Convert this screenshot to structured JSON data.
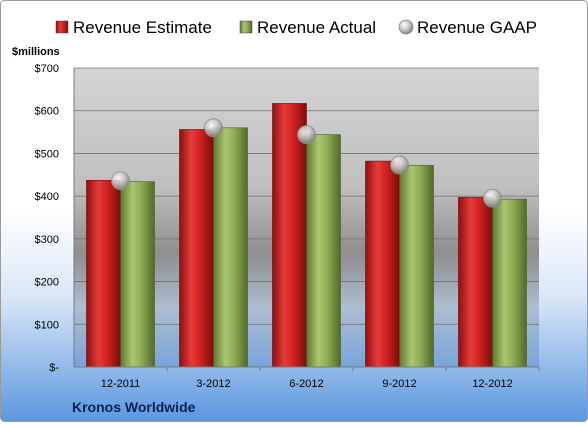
{
  "chart_data": {
    "type": "bar",
    "ylabel": "$millions",
    "footer": "Kronos Worldwide",
    "categories": [
      "12-2011",
      "3-2012",
      "6-2012",
      "9-2012",
      "12-2012"
    ],
    "y_ticks": [
      "$-",
      "$100",
      "$200",
      "$300",
      "$400",
      "$500",
      "$600",
      "$700"
    ],
    "ylim": [
      0,
      700
    ],
    "grid": true,
    "legend_position": "top",
    "series": [
      {
        "name": "Revenue Estimate",
        "kind": "bar",
        "color": "#cc1f1f",
        "values": [
          437,
          556,
          617,
          482,
          397
        ]
      },
      {
        "name": "Revenue Actual",
        "kind": "bar",
        "color": "#8fae55",
        "values": [
          434,
          560,
          544,
          472,
          393
        ]
      },
      {
        "name": "Revenue GAAP",
        "kind": "marker",
        "color": "#b8b8b8",
        "values": [
          436,
          560,
          544,
          473,
          395
        ]
      }
    ]
  }
}
